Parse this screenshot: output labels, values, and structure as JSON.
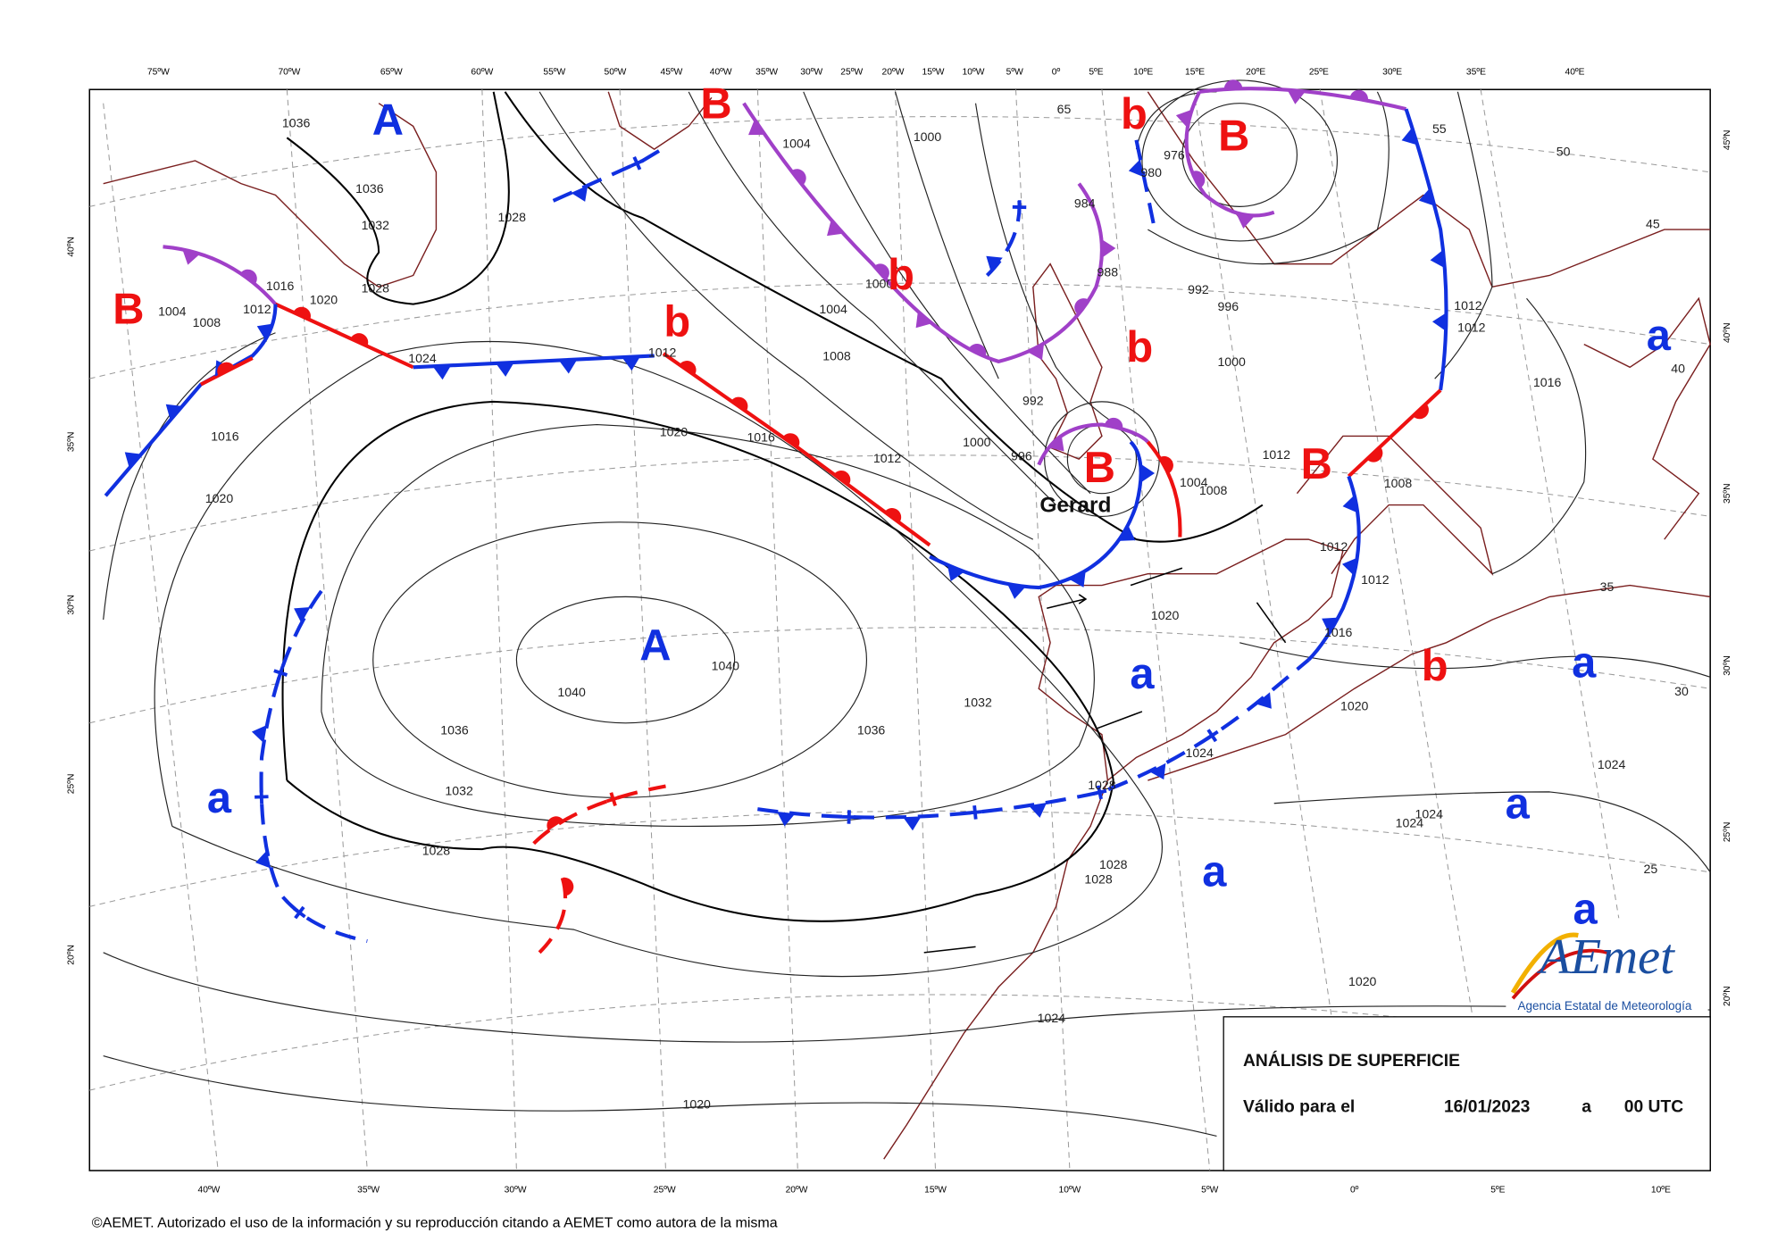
{
  "top_longitudes": [
    "75ºW",
    "70ºW",
    "65ºW",
    "60ºW",
    "55ºW",
    "50ºW",
    "45ºW",
    "40ºW",
    "35ºW",
    "30ºW",
    "25ºW",
    "20ºW",
    "15ºW",
    "10ºW",
    "5ºW",
    "0º",
    "5ºE",
    "10ºE",
    "15ºE",
    "20ºE",
    "25ºE",
    "30ºE",
    "35ºE",
    "40ºE"
  ],
  "bottom_longitudes": [
    "40ºW",
    "35ºW",
    "30ºW",
    "25ºW",
    "20ºW",
    "15ºW",
    "10ºW",
    "5ºW",
    "0º",
    "5ºE",
    "10ºE"
  ],
  "left_latitudes": [
    "40ºN",
    "35ºN",
    "30ºN",
    "25ºN",
    "20ºN"
  ],
  "right_latitudes": [
    "45ºN",
    "40ºN",
    "35ºN",
    "30ºN",
    "25ºN",
    "20ºN"
  ],
  "pressure_systems": [
    "A",
    "B",
    "b",
    "B",
    "B",
    "b",
    "b",
    "b",
    "a",
    "B",
    "B",
    "A",
    "a",
    "b",
    "a",
    "a",
    "a",
    "a",
    "a"
  ],
  "isobar_labels": [
    "1036",
    "1036",
    "1032",
    "1028",
    "1028",
    "1016",
    "1020",
    "1004",
    "1008",
    "1012",
    "1024",
    "1016",
    "1020",
    "1004",
    "1000",
    "1000",
    "1004",
    "1008",
    "1012",
    "1020",
    "1016",
    "1012",
    "1000",
    "996",
    "992",
    "984",
    "988",
    "992",
    "996",
    "980",
    "976",
    "1000",
    "1004",
    "1008",
    "1012",
    "1012",
    "1012",
    "1016",
    "1008",
    "1012",
    "1012",
    "1016",
    "1020",
    "1040",
    "1040",
    "1036",
    "1036",
    "1032",
    "1032",
    "1028",
    "1028",
    "1028",
    "1028",
    "1024",
    "1020",
    "1024",
    "1024",
    "1024",
    "1020",
    "1024",
    "1020",
    "65",
    "55",
    "50",
    "45",
    "40",
    "35",
    "30",
    "25"
  ],
  "storm_name": "Gerard",
  "info_box": {
    "title": "ANÁLISIS DE SUPERFICIE",
    "valid_label": "Válido para el",
    "date": "16/01/2023",
    "separator": "a",
    "time": "00 UTC"
  },
  "logo": {
    "name": "AEmet",
    "subtitle": "Agencia Estatal de Meteorología"
  },
  "footer": "©AEMET. Autorizado el uso de la información y su reproducción citando a AEMET como autora de la misma"
}
